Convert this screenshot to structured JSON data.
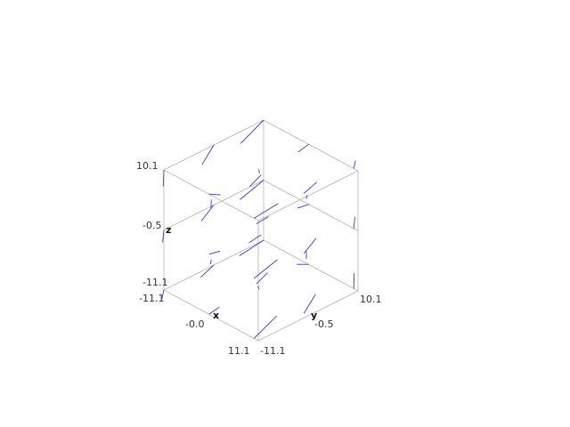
{
  "chart_data": {
    "type": "quiver3d",
    "xlabel": "x",
    "ylabel": "y",
    "zlabel": "z",
    "xlim": [
      -11.1,
      11.1
    ],
    "ylim": [
      -11.1,
      10.1
    ],
    "zlim": [
      -11.1,
      10.1
    ],
    "x_ticks": [
      "-11.1",
      "-0.0",
      "11.1"
    ],
    "y_ticks": [
      "-11.1",
      "-0.5",
      "10.1"
    ],
    "z_ticks": [
      "-11.1",
      "-0.5",
      "10.1"
    ],
    "vector_color": "#3a3ad9",
    "box_color": "#b5b5b5",
    "grid_levels": [
      -11.1,
      -0.5,
      10.1
    ]
  }
}
